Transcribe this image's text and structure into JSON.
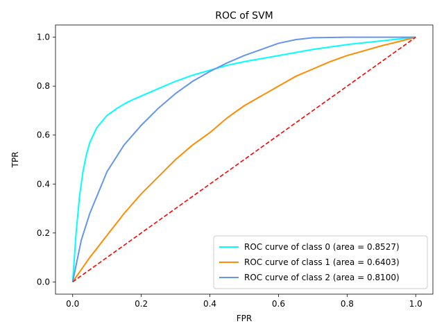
{
  "chart_data": {
    "type": "line",
    "title": "ROC of SVM",
    "xlabel": "FPR",
    "ylabel": "TPR",
    "xlim": [
      -0.05,
      1.05
    ],
    "ylim": [
      -0.05,
      1.05
    ],
    "xticks": [
      "0.0",
      "0.2",
      "0.4",
      "0.6",
      "0.8",
      "1.0"
    ],
    "yticks": [
      "0.0",
      "0.2",
      "0.4",
      "0.6",
      "0.8",
      "1.0"
    ],
    "grid": false,
    "legend_position": "lower-right",
    "series": [
      {
        "name": "ROC curve of class 0 (area = 0.8527)",
        "color": "#00ffff",
        "style": "solid",
        "x": [
          0,
          0.01,
          0.02,
          0.03,
          0.04,
          0.05,
          0.07,
          0.1,
          0.13,
          0.16,
          0.2,
          0.25,
          0.3,
          0.35,
          0.4,
          0.45,
          0.5,
          0.6,
          0.7,
          0.8,
          0.9,
          1.0
        ],
        "y": [
          0,
          0.2,
          0.35,
          0.45,
          0.52,
          0.57,
          0.63,
          0.68,
          0.71,
          0.735,
          0.76,
          0.79,
          0.82,
          0.845,
          0.865,
          0.885,
          0.9,
          0.925,
          0.95,
          0.97,
          0.985,
          1.0
        ]
      },
      {
        "name": "ROC curve of class 1 (area = 0.6403)",
        "color": "#ff8c00",
        "style": "solid",
        "x": [
          0,
          0.05,
          0.1,
          0.15,
          0.2,
          0.25,
          0.3,
          0.35,
          0.4,
          0.45,
          0.5,
          0.55,
          0.6,
          0.65,
          0.7,
          0.75,
          0.8,
          0.85,
          0.9,
          0.95,
          1.0
        ],
        "y": [
          0,
          0.1,
          0.19,
          0.28,
          0.36,
          0.43,
          0.5,
          0.56,
          0.61,
          0.67,
          0.72,
          0.76,
          0.8,
          0.84,
          0.87,
          0.9,
          0.925,
          0.945,
          0.965,
          0.982,
          1.0
        ]
      },
      {
        "name": "ROC curve of class 2 (area = 0.8100)",
        "color": "#6495ed",
        "style": "solid",
        "x": [
          0,
          0.025,
          0.05,
          0.1,
          0.15,
          0.2,
          0.25,
          0.3,
          0.35,
          0.4,
          0.45,
          0.5,
          0.55,
          0.6,
          0.65,
          0.7,
          0.8,
          0.9,
          1.0
        ],
        "y": [
          0,
          0.17,
          0.28,
          0.45,
          0.56,
          0.64,
          0.71,
          0.77,
          0.82,
          0.86,
          0.895,
          0.925,
          0.95,
          0.975,
          0.99,
          0.998,
          1.0,
          1.0,
          1.0
        ]
      },
      {
        "name": "",
        "color": "#ff0000",
        "style": "dashed",
        "x": [
          0,
          1
        ],
        "y": [
          0,
          1
        ]
      }
    ]
  }
}
